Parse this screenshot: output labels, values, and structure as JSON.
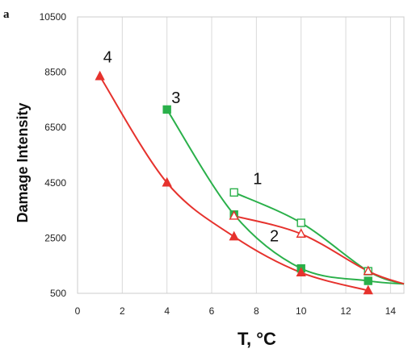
{
  "panel_label": "a",
  "chart_data": {
    "type": "line",
    "title": "",
    "xlabel": "T, °C",
    "ylabel": "Damage Intensity",
    "xlim": [
      0,
      14.6
    ],
    "ylim": [
      500,
      10500
    ],
    "x_ticks": [
      "0",
      "2",
      "4",
      "6",
      "8",
      "10",
      "12",
      "14"
    ],
    "y_ticks": [
      "500",
      "2500",
      "4500",
      "6500",
      "8500",
      "10500"
    ],
    "grid": "vertical",
    "series": [
      {
        "name": "1",
        "color": "#2ab04a",
        "marker": "square-open",
        "points": [
          [
            7,
            4150
          ],
          [
            10,
            3050
          ],
          [
            13,
            1300
          ]
        ],
        "tail": [
          [
            14.6,
            840
          ]
        ]
      },
      {
        "name": "2",
        "color": "#e6322d",
        "marker": "triangle-open",
        "points": [
          [
            7,
            3300
          ],
          [
            10,
            2650
          ],
          [
            13,
            1300
          ]
        ],
        "tail": [
          [
            14.6,
            840
          ]
        ]
      },
      {
        "name": "3",
        "color": "#2ab04a",
        "marker": "square-filled",
        "points": [
          [
            4,
            7150
          ],
          [
            7,
            3350
          ],
          [
            10,
            1400
          ],
          [
            13,
            950
          ]
        ],
        "tail": [
          [
            14.6,
            840
          ]
        ]
      },
      {
        "name": "4",
        "color": "#e6322d",
        "marker": "triangle-filled",
        "points": [
          [
            1,
            8350
          ],
          [
            4,
            4500
          ],
          [
            7,
            2550
          ],
          [
            10,
            1250
          ],
          [
            13,
            600
          ]
        ],
        "tail": []
      }
    ]
  }
}
